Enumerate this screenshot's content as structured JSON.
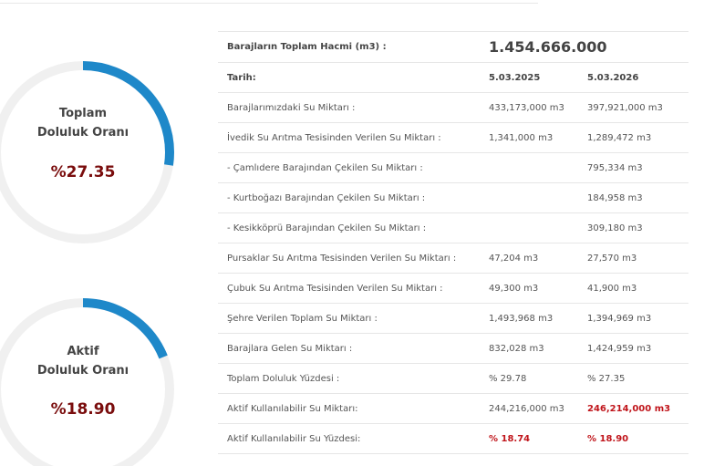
{
  "gauges": {
    "total": {
      "title_line1": "Toplam",
      "title_line2": "Doluluk Oranı",
      "value": "%27.35",
      "fraction": 0.2735,
      "color": "#1e88c9",
      "track_color": "#f0f0f0"
    },
    "active": {
      "title_line1": "Aktif",
      "title_line2": "Doluluk Oranı",
      "value": "%18.90",
      "fraction": 0.189,
      "color": "#1e88c9",
      "track_color": "#f0f0f0"
    }
  },
  "table": {
    "volume_label": "Barajların Toplam Hacmi (m3) :",
    "volume_value": "1.454.666.000",
    "date_label": "Tarih:",
    "date1": "5.03.2025",
    "date2": "5.03.2026",
    "rows": [
      {
        "label": "Barajlarımızdaki Su Miktarı :",
        "v1": "433,173,000 m3",
        "v2": "397,921,000 m3"
      },
      {
        "label": "İvedik Su Arıtma Tesisinden Verilen Su Miktarı :",
        "v1": "1,341,000 m3",
        "v2": "1,289,472 m3"
      },
      {
        "label": "- Çamlıdere Barajından Çekilen Su Miktarı :",
        "v1": "",
        "v2": "795,334 m3"
      },
      {
        "label": "- Kurtboğazı Barajından Çekilen Su Miktarı :",
        "v1": "",
        "v2": "184,958 m3"
      },
      {
        "label": "- Kesikköprü Barajından Çekilen Su Miktarı :",
        "v1": "",
        "v2": "309,180 m3"
      },
      {
        "label": "Pursaklar Su Arıtma Tesisinden Verilen Su Miktarı :",
        "v1": "47,204 m3",
        "v2": "27,570 m3"
      },
      {
        "label": "Çubuk Su Arıtma Tesisinden Verilen Su Miktarı :",
        "v1": "49,300 m3",
        "v2": "41,900 m3"
      },
      {
        "label": "Şehre Verilen Toplam Su Miktarı :",
        "v1": "1,493,968 m3",
        "v2": "1,394,969 m3"
      },
      {
        "label": "Barajlara Gelen Su Miktarı :",
        "v1": "832,028 m3",
        "v2": "1,424,959 m3"
      },
      {
        "label": "Toplam Doluluk Yüzdesi :",
        "v1": "% 29.78",
        "v2": "% 27.35"
      },
      {
        "label": "Aktif Kullanılabilir Su Miktarı:",
        "v1": "244,216,000 m3",
        "v2": "246,214,000 m3"
      },
      {
        "label": "Aktif Kullanılabilir Su Yüzdesi:",
        "v1": "% 18.74",
        "v2": "% 18.90"
      }
    ]
  }
}
